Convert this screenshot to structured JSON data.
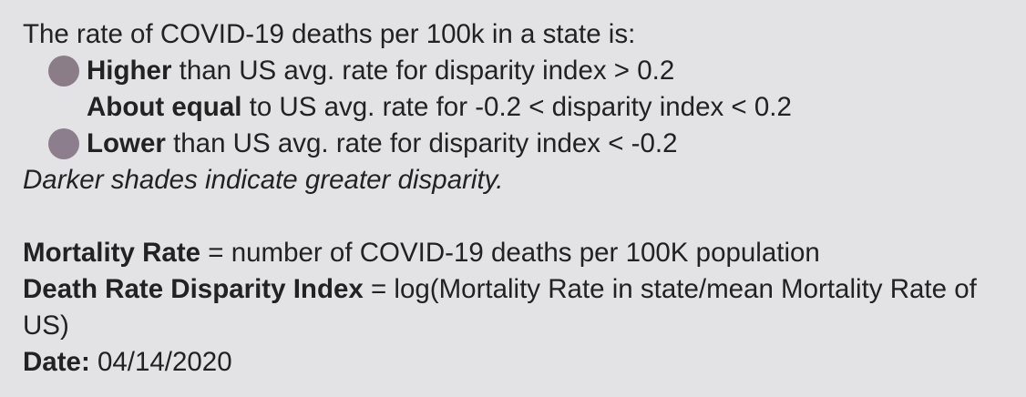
{
  "legend": {
    "intro": "The rate of COVID-19 deaths per 100k in a state is:",
    "items": [
      {
        "label_bold": "Higher",
        "label_rest": " than US avg. rate for disparity index > 0.2",
        "swatch_color": "#8a7d88",
        "swatch_icon": "circle-swatch"
      },
      {
        "label_bold": "About equal",
        "label_rest": " to US avg. rate for -0.2 < disparity index < 0.2"
      },
      {
        "label_bold": "Lower",
        "label_rest": " than US avg. rate for disparity index < -0.2",
        "swatch_color": "#8d7e8d",
        "swatch_icon": "circle-swatch"
      }
    ],
    "note": "Darker shades indicate greater disparity."
  },
  "definitions": {
    "mortality_term": "Mortality Rate",
    "mortality_def": " = number of COVID-19 deaths per 100K population",
    "disparity_term": "Death Rate Disparity Index",
    "disparity_def": " = log(Mortality Rate in state/mean Mortality Rate of US)",
    "date_label": "Date:",
    "date_value": " 04/14/2020"
  }
}
